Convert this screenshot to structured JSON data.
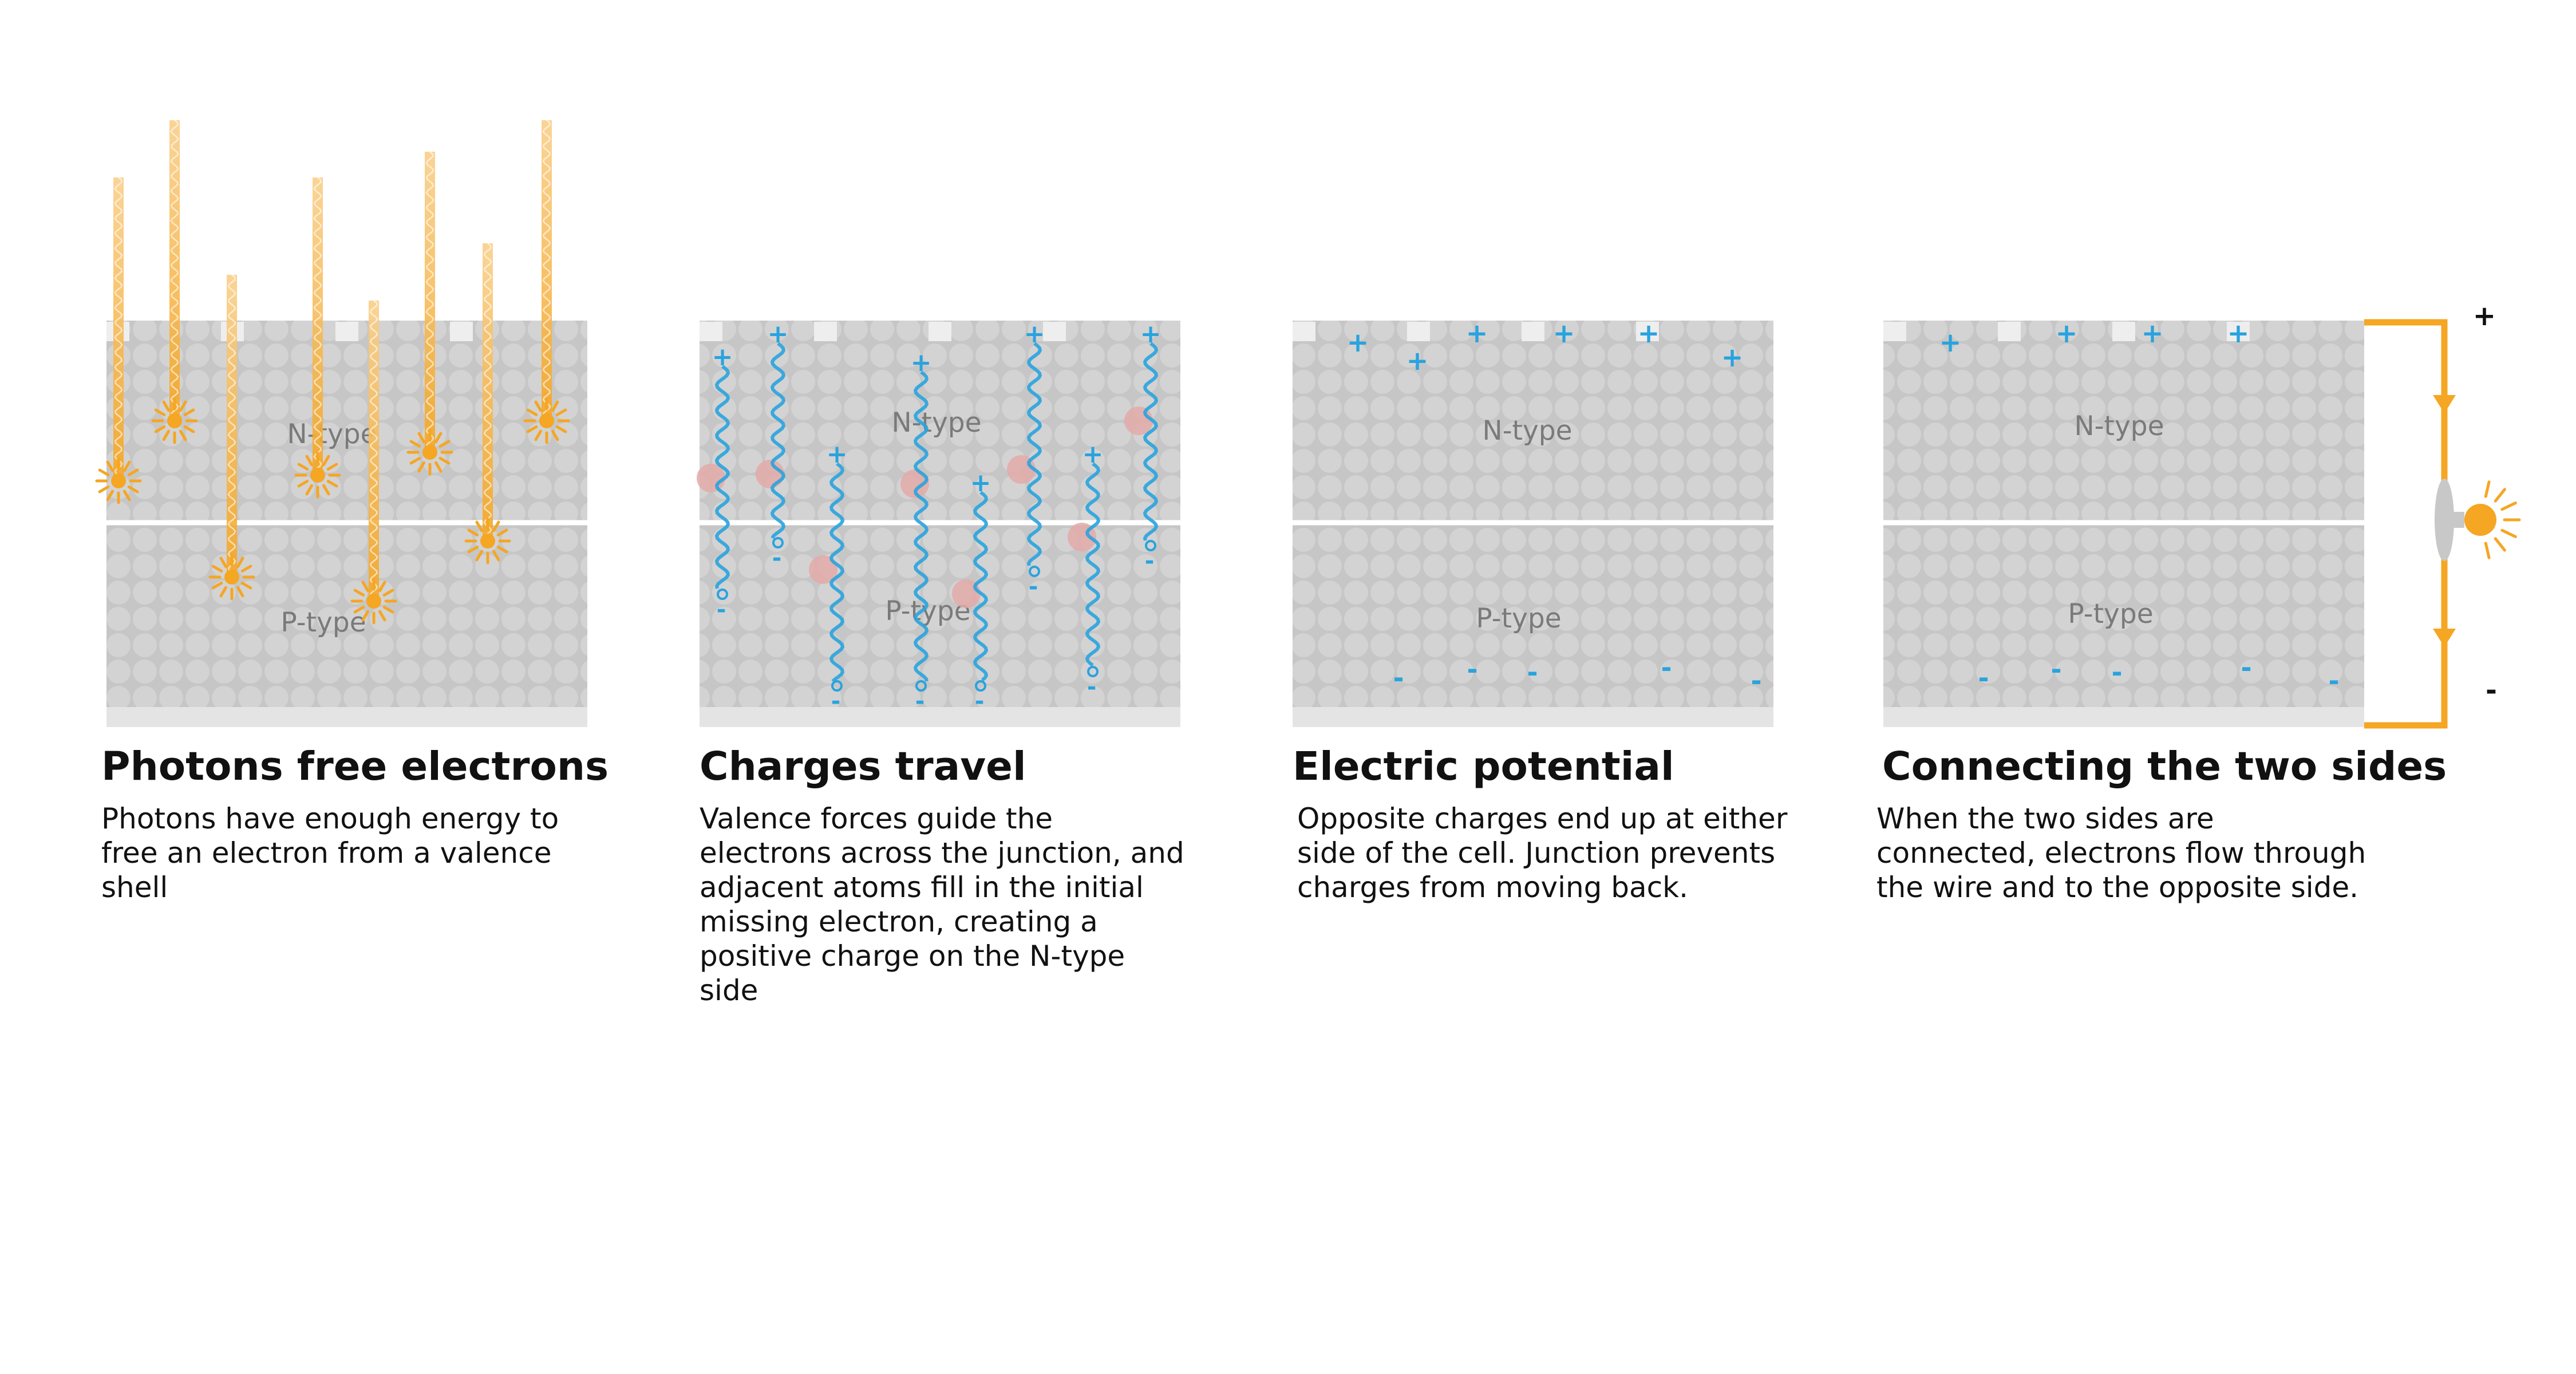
{
  "colors": {
    "photon": "#f5a623",
    "electron": "#29a3de",
    "cell": "#c8c8c8",
    "atom": "#d2d2d2",
    "hole": "#e2aaa8",
    "wire": "#f5a623"
  },
  "labels": {
    "n_type": "N-type",
    "p_type": "P-type",
    "plus": "+",
    "minus": "-"
  },
  "panels": [
    {
      "title": "Photons free electrons",
      "description": "Photons have enough energy to free an electron from a valence shell"
    },
    {
      "title": "Charges travel",
      "description": "Valence forces guide the electrons across the junction, and adjacent atoms fill in the initial missing electron, creating a positive charge on the N-type side"
    },
    {
      "title": "Electric potential",
      "description": "Opposite charges end up at either side of the cell. Junction prevents charges from moving back."
    },
    {
      "title": "Connecting the two sides",
      "description": "When the two sides are connected, electrons flow through the wire and to the opposite side."
    }
  ],
  "circuit": {
    "positive_terminal": "+",
    "negative_terminal": "-",
    "icons": [
      "arrow-down-icon",
      "arrow-down-icon",
      "light-bulb-icon"
    ]
  }
}
